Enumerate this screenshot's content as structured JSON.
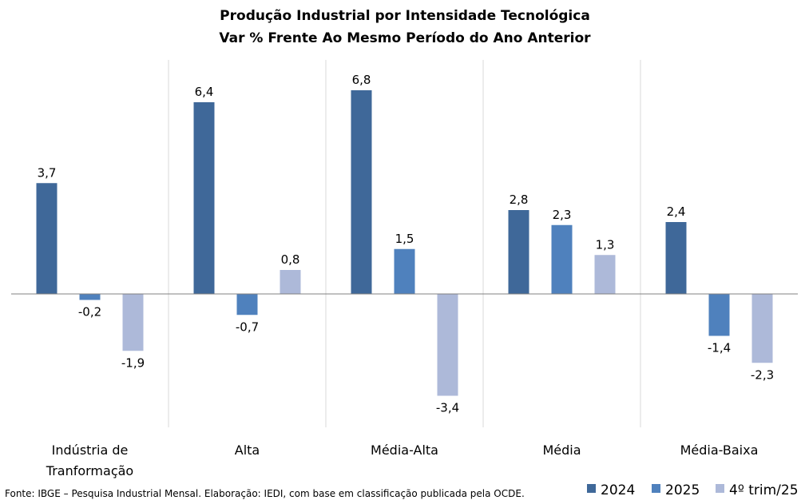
{
  "chart_data": {
    "type": "bar",
    "title": "Produção Industrial por Intensidade Tecnológica",
    "subtitle": "Var % Frente Ao Mesmo Período do Ano Anterior",
    "categories": [
      [
        "Indústria de",
        "Tranformação"
      ],
      [
        "Alta"
      ],
      [
        "Média-Alta"
      ],
      [
        "Média"
      ],
      [
        "Média-Baixa"
      ]
    ],
    "series": [
      {
        "name": "2024",
        "color": "#3f6899",
        "values": [
          3.7,
          6.4,
          6.8,
          2.8,
          2.4
        ],
        "labels": [
          "3,7",
          "6,4",
          "6,8",
          "2,8",
          "2,4"
        ]
      },
      {
        "name": "2025",
        "color": "#4f81bd",
        "values": [
          -0.2,
          -0.7,
          1.5,
          2.3,
          -1.4
        ],
        "labels": [
          "-0,2",
          "-0,7",
          "1,5",
          "2,3",
          "-1,4"
        ]
      },
      {
        "name": "4º trim/25",
        "color": "#adb9d9",
        "values": [
          -1.9,
          0.8,
          -3.4,
          1.3,
          -2.3
        ],
        "labels": [
          "-1,9",
          "0,8",
          "-3,4",
          "1,3",
          "-2,3"
        ]
      }
    ],
    "xlabel": "",
    "ylabel": "",
    "ylim": [
      -4.5,
      7.8
    ],
    "grid": false,
    "legend": "bottom-right",
    "source": "Fonte: IBGE – Pesquisa Industrial Mensal. Elaboração: IEDI, com base em classificação publicada pela OCDE."
  }
}
